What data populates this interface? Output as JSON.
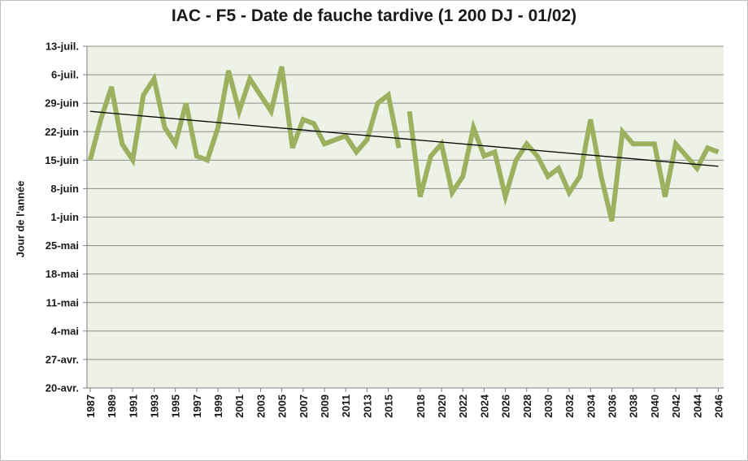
{
  "chart_data": {
    "type": "line",
    "title": "IAC - F5 - Date de fauche tardive (1 200 DJ - 01/02)",
    "ylabel": "Jour de l'année",
    "xlabel": "",
    "x_tick_labels": [
      "1987",
      "1989",
      "1991",
      "1993",
      "1995",
      "1997",
      "1999",
      "2001",
      "2003",
      "2005",
      "2007",
      "2009",
      "2011",
      "2013",
      "2015",
      "2018",
      "2020",
      "2022",
      "2024",
      "2026",
      "2028",
      "2030",
      "2032",
      "2034",
      "2036",
      "2038",
      "2040",
      "2042",
      "2044",
      "2046"
    ],
    "y_tick_labels": [
      "20-avr.",
      "27-avr.",
      "4-mai",
      "11-mai",
      "18-mai",
      "25-mai",
      "1-juin",
      "8-juin",
      "15-juin",
      "22-juin",
      "29-juin",
      "6-juil.",
      "13-juil."
    ],
    "ylim": [
      110,
      194
    ],
    "y_ticks": [
      110,
      117,
      124,
      131,
      138,
      145,
      152,
      159,
      166,
      173,
      180,
      187,
      194
    ],
    "grid": true,
    "plot_background": "#eef1e6",
    "colors": {
      "series": "#9bb160",
      "trend": "#000000",
      "grid": "#8c8c8c"
    },
    "series": [
      {
        "segments": [
          {
            "x": [
              1987,
              1988,
              1989,
              1990,
              1991,
              1992,
              1993,
              1994,
              1995,
              1996,
              1997,
              1998,
              1999,
              2000,
              2001,
              2002,
              2003,
              2004,
              2005,
              2006,
              2007,
              2008,
              2009,
              2010,
              2011,
              2012,
              2013,
              2014,
              2015,
              2016
            ],
            "values": [
              166,
              176,
              184,
              170,
              166,
              182,
              186,
              174,
              170,
              180,
              167,
              166,
              174,
              188,
              178,
              186,
              182,
              178,
              189,
              169,
              176,
              175,
              170,
              171,
              172,
              168,
              171,
              180,
              182,
              169
            ]
          },
          {
            "x": [
              2017,
              2018,
              2019,
              2020,
              2021,
              2022,
              2023,
              2024,
              2025,
              2026,
              2027,
              2028,
              2029,
              2030,
              2031,
              2032,
              2033,
              2034,
              2035,
              2036,
              2037,
              2038,
              2039,
              2040,
              2041,
              2042,
              2043,
              2044,
              2045,
              2046
            ],
            "values": [
              178,
              157,
              167,
              170,
              158,
              162,
              174,
              167,
              168,
              157,
              166,
              170,
              167,
              162,
              164,
              158,
              162,
              176,
              162,
              151,
              173,
              170,
              170,
              170,
              157,
              170,
              167,
              164,
              169,
              168
            ]
          }
        ]
      }
    ],
    "trendline": {
      "x": [
        1987,
        2046
      ],
      "values": [
        178.0,
        164.5
      ]
    }
  }
}
